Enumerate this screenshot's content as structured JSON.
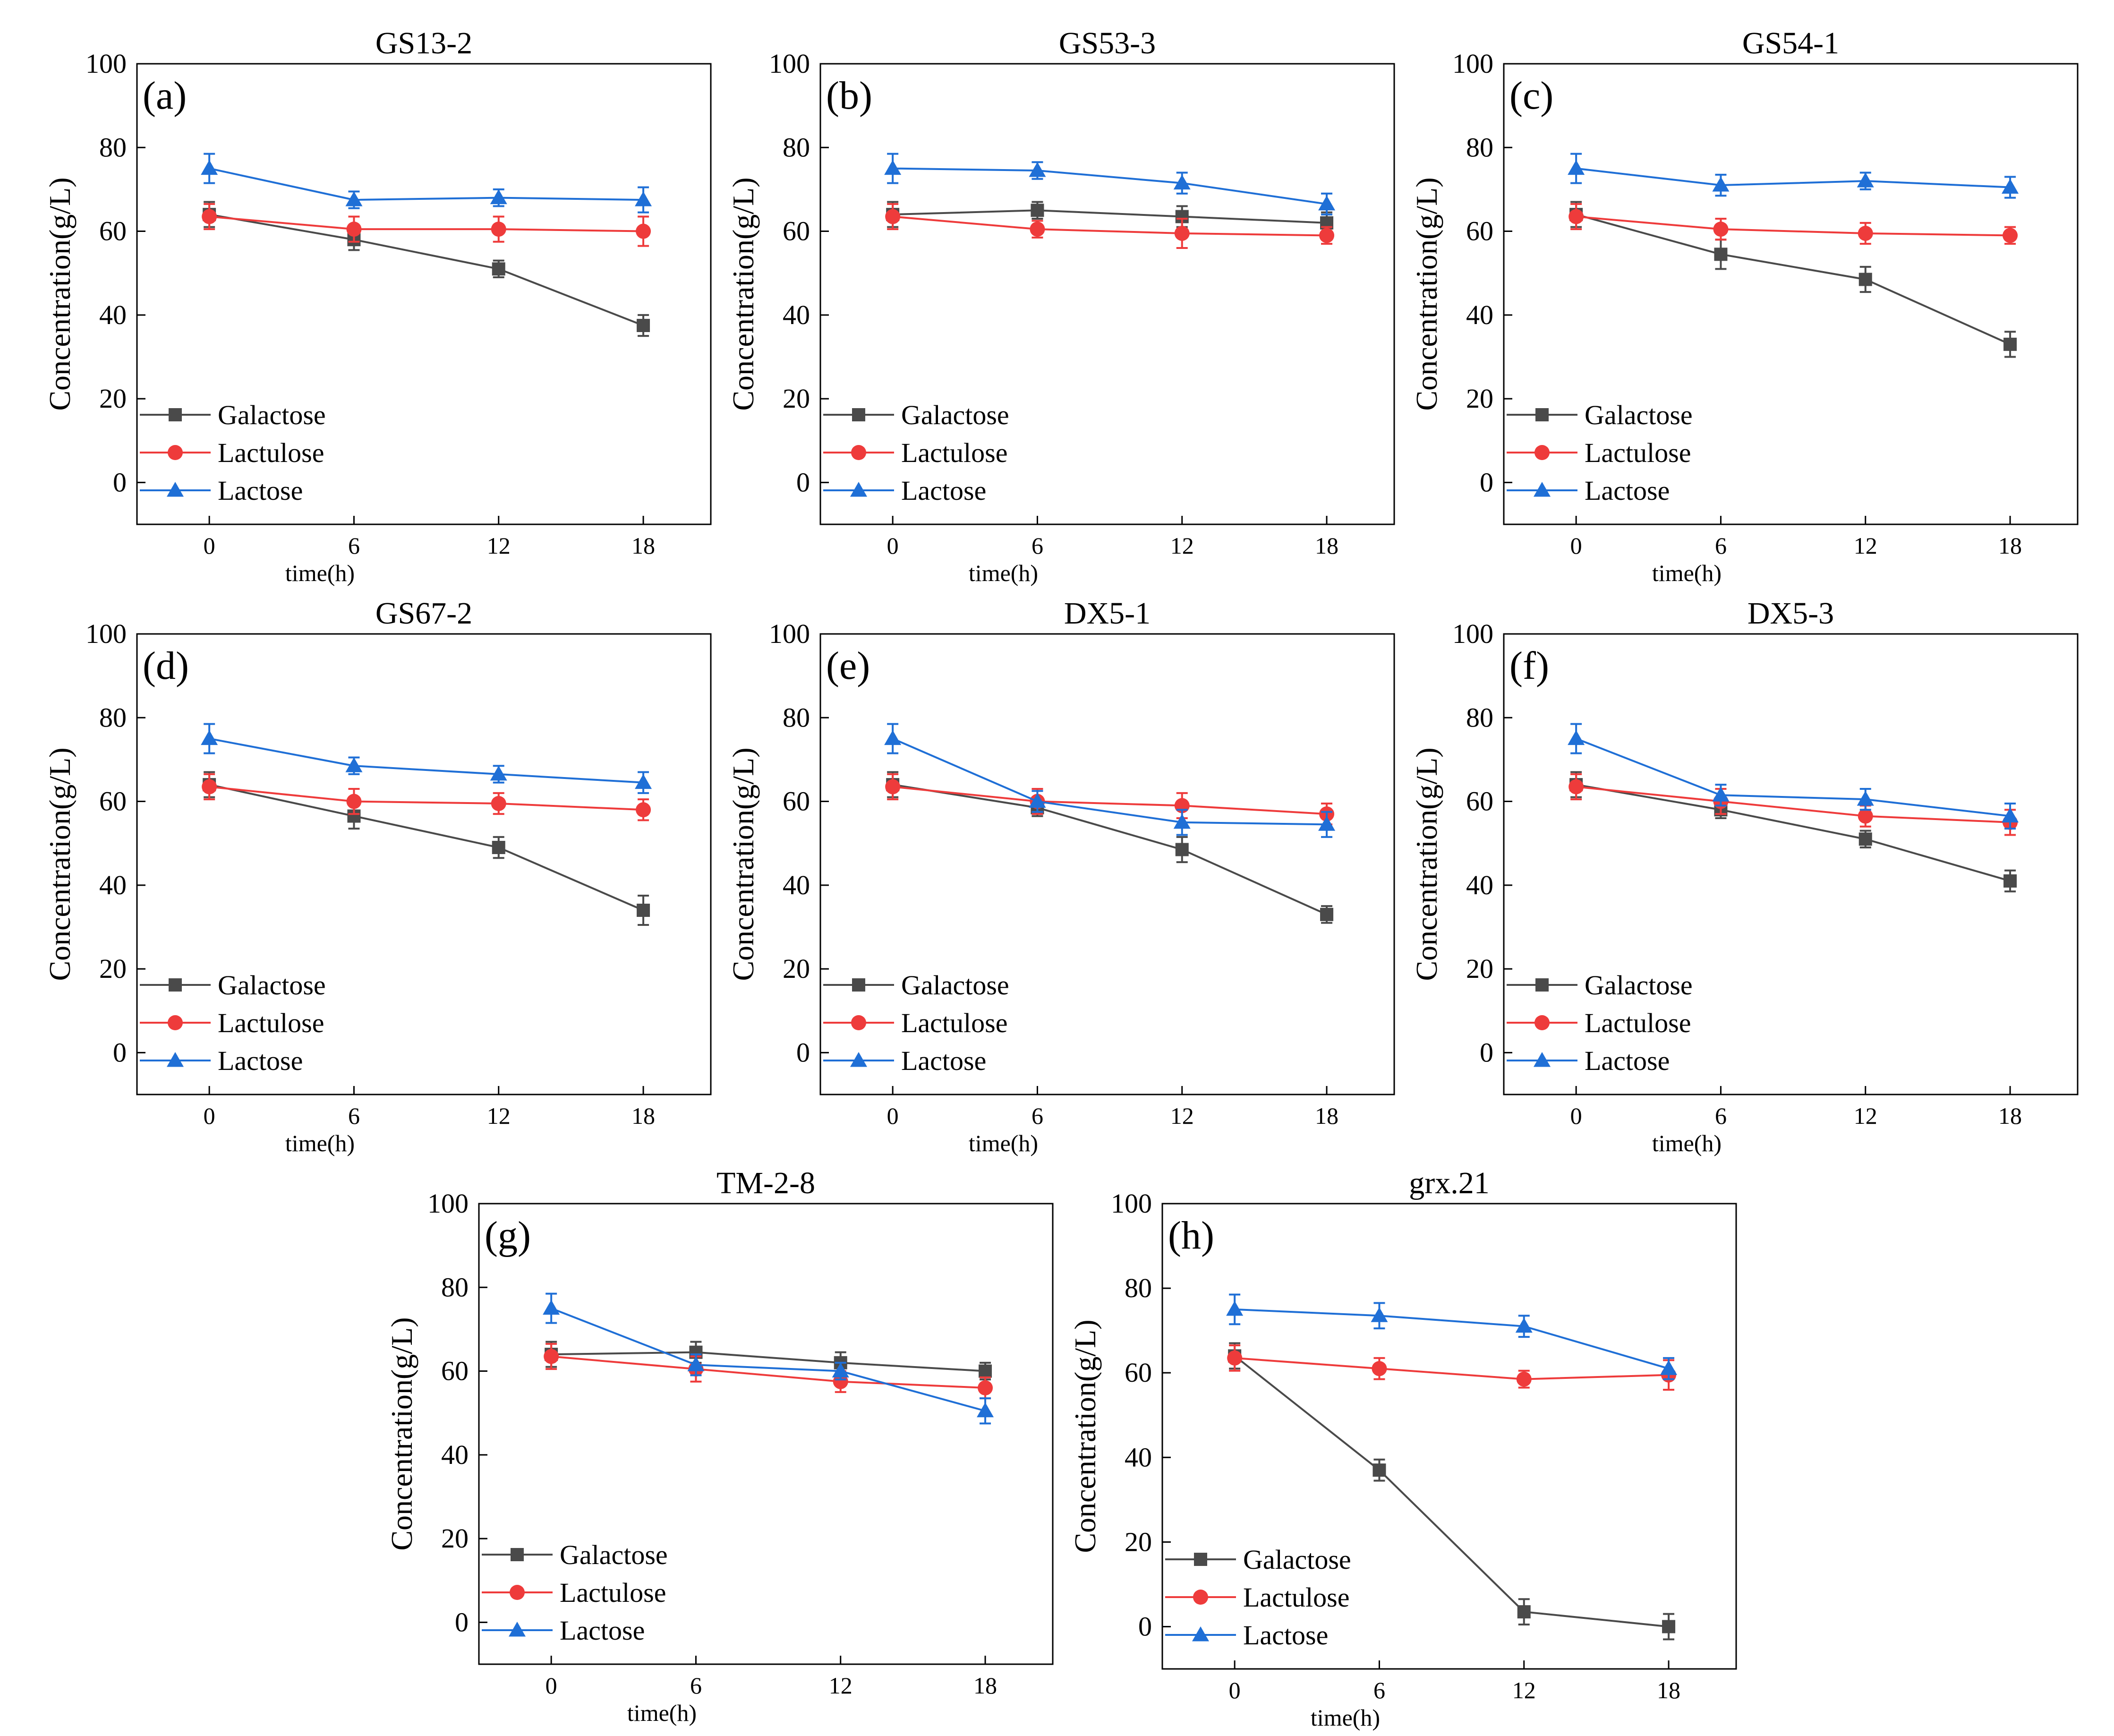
{
  "chart_data": [
    {
      "type": "line",
      "panel_label": "(a)",
      "title": "GS13-2",
      "xlabel": "time(h)",
      "ylabel": "Concentration(g/L)",
      "x": [
        0,
        6,
        12,
        18
      ],
      "xticks": [
        0,
        6,
        12,
        18
      ],
      "xlim": [
        -3,
        20.8
      ],
      "yticks": [
        0,
        20,
        40,
        60,
        80,
        100
      ],
      "ylim": [
        -10,
        100
      ],
      "legend_position": "bottom-left",
      "series": [
        {
          "name": "Galactose",
          "color": "#4a4a4a",
          "marker": "square",
          "values": [
            64,
            58,
            51,
            37.5
          ],
          "errors": [
            3,
            2.5,
            2,
            2.5
          ]
        },
        {
          "name": "Lactulose",
          "color": "#ee3b3b",
          "marker": "circle",
          "values": [
            63.5,
            60.5,
            60.5,
            60
          ],
          "errors": [
            3,
            3,
            3,
            3.5
          ]
        },
        {
          "name": "Lactose",
          "color": "#1f6fd6",
          "marker": "triangle",
          "values": [
            75,
            67.5,
            68,
            67.5
          ],
          "errors": [
            3.5,
            2,
            2,
            3
          ]
        }
      ]
    },
    {
      "type": "line",
      "panel_label": "(b)",
      "title": "GS53-3",
      "xlabel": "time(h)",
      "ylabel": "Concentration(g/L)",
      "x": [
        0,
        6,
        12,
        18
      ],
      "xticks": [
        0,
        6,
        12,
        18
      ],
      "xlim": [
        -3,
        20.8
      ],
      "yticks": [
        0,
        20,
        40,
        60,
        80,
        100
      ],
      "ylim": [
        -10,
        100
      ],
      "legend_position": "bottom-left",
      "series": [
        {
          "name": "Galactose",
          "color": "#4a4a4a",
          "marker": "square",
          "values": [
            64,
            65,
            63.5,
            62
          ],
          "errors": [
            3,
            2,
            2.5,
            2.5
          ]
        },
        {
          "name": "Lactulose",
          "color": "#ee3b3b",
          "marker": "circle",
          "values": [
            63.5,
            60.5,
            59.5,
            59
          ],
          "errors": [
            3,
            2,
            3.5,
            2
          ]
        },
        {
          "name": "Lactose",
          "color": "#1f6fd6",
          "marker": "triangle",
          "values": [
            75,
            74.5,
            71.5,
            66.5
          ],
          "errors": [
            3.5,
            2,
            2.5,
            2.5
          ]
        }
      ]
    },
    {
      "type": "line",
      "panel_label": "(c)",
      "title": "GS54-1",
      "xlabel": "time(h)",
      "ylabel": "Concentration(g/L)",
      "x": [
        0,
        6,
        12,
        18
      ],
      "xticks": [
        0,
        6,
        12,
        18
      ],
      "xlim": [
        -3,
        20.8
      ],
      "yticks": [
        0,
        20,
        40,
        60,
        80,
        100
      ],
      "ylim": [
        -10,
        100
      ],
      "legend_position": "bottom-left",
      "series": [
        {
          "name": "Galactose",
          "color": "#4a4a4a",
          "marker": "square",
          "values": [
            64,
            54.5,
            48.5,
            33
          ],
          "errors": [
            3,
            3.5,
            3,
            3
          ]
        },
        {
          "name": "Lactulose",
          "color": "#ee3b3b",
          "marker": "circle",
          "values": [
            63.5,
            60.5,
            59.5,
            59
          ],
          "errors": [
            3,
            2.5,
            2.5,
            2
          ]
        },
        {
          "name": "Lactose",
          "color": "#1f6fd6",
          "marker": "triangle",
          "values": [
            75,
            71,
            72,
            70.5
          ],
          "errors": [
            3.5,
            2.5,
            2,
            2.5
          ]
        }
      ]
    },
    {
      "type": "line",
      "panel_label": "(d)",
      "title": "GS67-2",
      "xlabel": "time(h)",
      "ylabel": "Concentration(g/L)",
      "x": [
        0,
        6,
        12,
        18
      ],
      "xticks": [
        0,
        6,
        12,
        18
      ],
      "xlim": [
        -3,
        20.8
      ],
      "yticks": [
        0,
        20,
        40,
        60,
        80,
        100
      ],
      "ylim": [
        -10,
        100
      ],
      "legend_position": "bottom-left",
      "series": [
        {
          "name": "Galactose",
          "color": "#4a4a4a",
          "marker": "square",
          "values": [
            64,
            56.5,
            49,
            34
          ],
          "errors": [
            3,
            3,
            2.5,
            3.5
          ]
        },
        {
          "name": "Lactulose",
          "color": "#ee3b3b",
          "marker": "circle",
          "values": [
            63.5,
            60,
            59.5,
            58
          ],
          "errors": [
            3,
            3,
            2.5,
            2.5
          ]
        },
        {
          "name": "Lactose",
          "color": "#1f6fd6",
          "marker": "triangle",
          "values": [
            75,
            68.5,
            66.5,
            64.5
          ],
          "errors": [
            3.5,
            2,
            2,
            2.5
          ]
        }
      ]
    },
    {
      "type": "line",
      "panel_label": "(e)",
      "title": "DX5-1",
      "xlabel": "time(h)",
      "ylabel": "Concentration(g/L)",
      "x": [
        0,
        6,
        12,
        18
      ],
      "xticks": [
        0,
        6,
        12,
        18
      ],
      "xlim": [
        -3,
        20.8
      ],
      "yticks": [
        0,
        20,
        40,
        60,
        80,
        100
      ],
      "ylim": [
        -10,
        100
      ],
      "legend_position": "bottom-left",
      "series": [
        {
          "name": "Galactose",
          "color": "#4a4a4a",
          "marker": "square",
          "values": [
            64,
            58.5,
            48.5,
            33
          ],
          "errors": [
            3,
            2,
            3,
            2
          ]
        },
        {
          "name": "Lactulose",
          "color": "#ee3b3b",
          "marker": "circle",
          "values": [
            63.5,
            60,
            59,
            57
          ],
          "errors": [
            3,
            3,
            3,
            2.5
          ]
        },
        {
          "name": "Lactose",
          "color": "#1f6fd6",
          "marker": "triangle",
          "values": [
            75,
            60,
            55,
            54.5
          ],
          "errors": [
            3.5,
            2.5,
            3,
            3
          ]
        }
      ]
    },
    {
      "type": "line",
      "panel_label": "(f)",
      "title": "DX5-3",
      "xlabel": "time(h)",
      "ylabel": "Concentration(g/L)",
      "x": [
        0,
        6,
        12,
        18
      ],
      "xticks": [
        0,
        6,
        12,
        18
      ],
      "xlim": [
        -3,
        20.8
      ],
      "yticks": [
        0,
        20,
        40,
        60,
        80,
        100
      ],
      "ylim": [
        -10,
        100
      ],
      "legend_position": "bottom-left",
      "series": [
        {
          "name": "Galactose",
          "color": "#4a4a4a",
          "marker": "square",
          "values": [
            64,
            58,
            51,
            41
          ],
          "errors": [
            3,
            2,
            2,
            2.5
          ]
        },
        {
          "name": "Lactulose",
          "color": "#ee3b3b",
          "marker": "circle",
          "values": [
            63.5,
            60,
            56.5,
            55
          ],
          "errors": [
            3,
            3,
            2.5,
            3
          ]
        },
        {
          "name": "Lactose",
          "color": "#1f6fd6",
          "marker": "triangle",
          "values": [
            75,
            61.5,
            60.5,
            56.5
          ],
          "errors": [
            3.5,
            2.5,
            2.5,
            3
          ]
        }
      ]
    },
    {
      "type": "line",
      "panel_label": "(g)",
      "title": "TM-2-8",
      "xlabel": "time(h)",
      "ylabel": "Concentration(g/L)",
      "x": [
        0,
        6,
        12,
        18
      ],
      "xticks": [
        0,
        6,
        12,
        18
      ],
      "xlim": [
        -3,
        20.8
      ],
      "yticks": [
        0,
        20,
        40,
        60,
        80,
        100
      ],
      "ylim": [
        -10,
        100
      ],
      "legend_position": "bottom-left",
      "series": [
        {
          "name": "Galactose",
          "color": "#4a4a4a",
          "marker": "square",
          "values": [
            64,
            64.5,
            62,
            60
          ],
          "errors": [
            3,
            2.5,
            2.5,
            2
          ]
        },
        {
          "name": "Lactulose",
          "color": "#ee3b3b",
          "marker": "circle",
          "values": [
            63.5,
            60.5,
            57.5,
            56
          ],
          "errors": [
            3,
            3,
            2.5,
            2.5
          ]
        },
        {
          "name": "Lactose",
          "color": "#1f6fd6",
          "marker": "triangle",
          "values": [
            75,
            61.5,
            60,
            50.5
          ],
          "errors": [
            3.5,
            2.5,
            2,
            3
          ]
        }
      ]
    },
    {
      "type": "line",
      "panel_label": "(h)",
      "title": "grx.21",
      "xlabel": "time(h)",
      "ylabel": "Concentration(g/L)",
      "x": [
        0,
        6,
        12,
        18
      ],
      "xticks": [
        0,
        6,
        12,
        18
      ],
      "xlim": [
        -3,
        20.8
      ],
      "yticks": [
        0,
        20,
        40,
        60,
        80,
        100
      ],
      "ylim": [
        -10,
        100
      ],
      "legend_position": "bottom-left",
      "series": [
        {
          "name": "Galactose",
          "color": "#4a4a4a",
          "marker": "square",
          "values": [
            64,
            37,
            3.5,
            0
          ],
          "errors": [
            3,
            2.5,
            3,
            3
          ]
        },
        {
          "name": "Lactulose",
          "color": "#ee3b3b",
          "marker": "circle",
          "values": [
            63.5,
            61,
            58.5,
            59.5
          ],
          "errors": [
            3,
            2.5,
            2,
            3.5
          ]
        },
        {
          "name": "Lactose",
          "color": "#1f6fd6",
          "marker": "triangle",
          "values": [
            75,
            73.5,
            71,
            61
          ],
          "errors": [
            3.5,
            3,
            2.5,
            2.5
          ]
        }
      ]
    }
  ]
}
